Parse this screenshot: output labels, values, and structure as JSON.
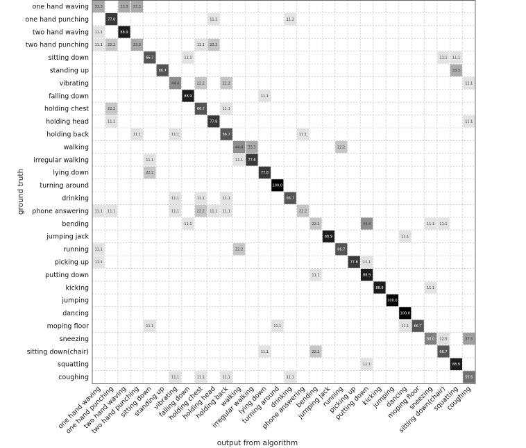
{
  "chart_data": {
    "type": "heatmap",
    "xlabel": "output from algorithm",
    "ylabel": "ground truth",
    "color_scale": {
      "min": 0,
      "max": 100,
      "low_color": "#ffffff",
      "high_color": "#000000"
    },
    "grid": true,
    "labels": [
      "one hand waving",
      "one hand punching",
      "two hand waving",
      "two hand punching",
      "sitting down",
      "standing up",
      "vibrating",
      "falling down",
      "holding chest",
      "holding head",
      "holding back",
      "walking",
      "irregular walking",
      "lying down",
      "turning around",
      "drinking",
      "phone answering",
      "bending",
      "jumping jack",
      "running",
      "picking up",
      "putting down",
      "kicking",
      "jumping",
      "dancing",
      "moping floor",
      "sneezing",
      "sitting down(chair)",
      "squatting",
      "coughing"
    ],
    "cells": [
      {
        "row": 0,
        "col": 0,
        "value": 33.3,
        "label": "33.3"
      },
      {
        "row": 0,
        "col": 2,
        "value": 33.3,
        "label": "33.3"
      },
      {
        "row": 0,
        "col": 3,
        "value": 33.3,
        "label": "33.3"
      },
      {
        "row": 1,
        "col": 1,
        "value": 77.8,
        "label": "77.8"
      },
      {
        "row": 1,
        "col": 9,
        "value": 11.1,
        "label": "11.1"
      },
      {
        "row": 1,
        "col": 15,
        "value": 11.1,
        "label": "11.1"
      },
      {
        "row": 2,
        "col": 0,
        "value": 11.1,
        "label": "11.1"
      },
      {
        "row": 2,
        "col": 2,
        "value": 88.9,
        "label": "88.9"
      },
      {
        "row": 3,
        "col": 0,
        "value": 11.1,
        "label": "11.1"
      },
      {
        "row": 3,
        "col": 1,
        "value": 22.2,
        "label": "22.2"
      },
      {
        "row": 3,
        "col": 3,
        "value": 33.3,
        "label": "33.3"
      },
      {
        "row": 3,
        "col": 8,
        "value": 11.1,
        "label": "11.1"
      },
      {
        "row": 3,
        "col": 9,
        "value": 22.2,
        "label": "22.2"
      },
      {
        "row": 4,
        "col": 4,
        "value": 66.7,
        "label": "66.7"
      },
      {
        "row": 4,
        "col": 7,
        "value": 11.1,
        "label": "11.1"
      },
      {
        "row": 4,
        "col": 27,
        "value": 11.1,
        "label": "11.1"
      },
      {
        "row": 4,
        "col": 28,
        "value": 11.1,
        "label": "11.1"
      },
      {
        "row": 5,
        "col": 5,
        "value": 66.7,
        "label": "66.7"
      },
      {
        "row": 5,
        "col": 28,
        "value": 33.3,
        "label": "33.3"
      },
      {
        "row": 6,
        "col": 6,
        "value": 44.4,
        "label": "44.4"
      },
      {
        "row": 6,
        "col": 8,
        "value": 22.2,
        "label": "22.2"
      },
      {
        "row": 6,
        "col": 10,
        "value": 22.2,
        "label": "22.2"
      },
      {
        "row": 6,
        "col": 29,
        "value": 11.1,
        "label": "11.1"
      },
      {
        "row": 7,
        "col": 7,
        "value": 88.9,
        "label": "88.9"
      },
      {
        "row": 7,
        "col": 13,
        "value": 11.1,
        "label": "11.1"
      },
      {
        "row": 8,
        "col": 1,
        "value": 22.2,
        "label": "22.2"
      },
      {
        "row": 8,
        "col": 8,
        "value": 66.7,
        "label": "66.7"
      },
      {
        "row": 8,
        "col": 10,
        "value": 11.1,
        "label": "11.1"
      },
      {
        "row": 9,
        "col": 1,
        "value": 11.1,
        "label": "11.1"
      },
      {
        "row": 9,
        "col": 9,
        "value": 77.8,
        "label": "77.8"
      },
      {
        "row": 9,
        "col": 29,
        "value": 11.1,
        "label": "11.1"
      },
      {
        "row": 10,
        "col": 3,
        "value": 11.1,
        "label": "11.1"
      },
      {
        "row": 10,
        "col": 6,
        "value": 11.1,
        "label": "11.1"
      },
      {
        "row": 10,
        "col": 10,
        "value": 66.7,
        "label": "66.7"
      },
      {
        "row": 10,
        "col": 16,
        "value": 11.1,
        "label": "11.1"
      },
      {
        "row": 11,
        "col": 11,
        "value": 44.4,
        "label": "44.4"
      },
      {
        "row": 11,
        "col": 12,
        "value": 33.3,
        "label": "33.3"
      },
      {
        "row": 11,
        "col": 19,
        "value": 22.2,
        "label": "22.2"
      },
      {
        "row": 12,
        "col": 4,
        "value": 11.1,
        "label": "11.1"
      },
      {
        "row": 12,
        "col": 11,
        "value": 11.1,
        "label": "11.1"
      },
      {
        "row": 12,
        "col": 12,
        "value": 77.8,
        "label": "77.8"
      },
      {
        "row": 13,
        "col": 4,
        "value": 22.2,
        "label": "22.2"
      },
      {
        "row": 13,
        "col": 13,
        "value": 77.8,
        "label": "77.8"
      },
      {
        "row": 14,
        "col": 14,
        "value": 100.0,
        "label": "100.0"
      },
      {
        "row": 15,
        "col": 6,
        "value": 11.1,
        "label": "11.1"
      },
      {
        "row": 15,
        "col": 8,
        "value": 11.1,
        "label": "11.1"
      },
      {
        "row": 15,
        "col": 10,
        "value": 11.1,
        "label": "11.1"
      },
      {
        "row": 15,
        "col": 15,
        "value": 66.7,
        "label": "66.7"
      },
      {
        "row": 16,
        "col": 0,
        "value": 11.1,
        "label": "11.1"
      },
      {
        "row": 16,
        "col": 1,
        "value": 11.1,
        "label": "11.1"
      },
      {
        "row": 16,
        "col": 6,
        "value": 11.1,
        "label": "11.1"
      },
      {
        "row": 16,
        "col": 8,
        "value": 22.2,
        "label": "22.2"
      },
      {
        "row": 16,
        "col": 9,
        "value": 11.1,
        "label": "11.1"
      },
      {
        "row": 16,
        "col": 10,
        "value": 11.1,
        "label": "11.1"
      },
      {
        "row": 16,
        "col": 16,
        "value": 22.2,
        "label": "22.2"
      },
      {
        "row": 17,
        "col": 7,
        "value": 11.1,
        "label": "11.1"
      },
      {
        "row": 17,
        "col": 17,
        "value": 22.2,
        "label": "22.2"
      },
      {
        "row": 17,
        "col": 21,
        "value": 44.4,
        "label": "44.4"
      },
      {
        "row": 17,
        "col": 26,
        "value": 11.1,
        "label": "11.1"
      },
      {
        "row": 17,
        "col": 27,
        "value": 11.1,
        "label": "11.1"
      },
      {
        "row": 18,
        "col": 18,
        "value": 88.9,
        "label": "88.9"
      },
      {
        "row": 18,
        "col": 24,
        "value": 11.1,
        "label": "11.1"
      },
      {
        "row": 19,
        "col": 0,
        "value": 11.1,
        "label": "11.1"
      },
      {
        "row": 19,
        "col": 11,
        "value": 22.2,
        "label": "22.2"
      },
      {
        "row": 19,
        "col": 19,
        "value": 66.7,
        "label": "66.7"
      },
      {
        "row": 20,
        "col": 0,
        "value": 11.1,
        "label": "11.1"
      },
      {
        "row": 20,
        "col": 20,
        "value": 77.8,
        "label": "77.8"
      },
      {
        "row": 20,
        "col": 21,
        "value": 11.1,
        "label": "11.1"
      },
      {
        "row": 21,
        "col": 17,
        "value": 11.1,
        "label": "11.1"
      },
      {
        "row": 21,
        "col": 21,
        "value": 88.9,
        "label": "88.9"
      },
      {
        "row": 22,
        "col": 22,
        "value": 88.9,
        "label": "88.9"
      },
      {
        "row": 22,
        "col": 26,
        "value": 11.1,
        "label": "11.1"
      },
      {
        "row": 23,
        "col": 23,
        "value": 100.0,
        "label": "100.0"
      },
      {
        "row": 24,
        "col": 24,
        "value": 100.0,
        "label": "100.0"
      },
      {
        "row": 25,
        "col": 4,
        "value": 11.1,
        "label": "11.1"
      },
      {
        "row": 25,
        "col": 14,
        "value": 11.1,
        "label": "11.1"
      },
      {
        "row": 25,
        "col": 24,
        "value": 11.1,
        "label": "11.1"
      },
      {
        "row": 25,
        "col": 25,
        "value": 66.7,
        "label": "66.7"
      },
      {
        "row": 26,
        "col": 26,
        "value": 50.0,
        "label": "50.0"
      },
      {
        "row": 26,
        "col": 27,
        "value": 12.5,
        "label": "12.5"
      },
      {
        "row": 26,
        "col": 29,
        "value": 37.5,
        "label": "37.5"
      },
      {
        "row": 27,
        "col": 13,
        "value": 11.1,
        "label": "11.1"
      },
      {
        "row": 27,
        "col": 17,
        "value": 22.2,
        "label": "22.2"
      },
      {
        "row": 27,
        "col": 27,
        "value": 66.7,
        "label": "66.7"
      },
      {
        "row": 28,
        "col": 21,
        "value": 11.1,
        "label": "11.1"
      },
      {
        "row": 28,
        "col": 28,
        "value": 88.9,
        "label": "88.9"
      },
      {
        "row": 29,
        "col": 6,
        "value": 11.1,
        "label": "11.1"
      },
      {
        "row": 29,
        "col": 8,
        "value": 11.1,
        "label": "11.1"
      },
      {
        "row": 29,
        "col": 10,
        "value": 11.1,
        "label": "11.1"
      },
      {
        "row": 29,
        "col": 15,
        "value": 11.1,
        "label": "11.1"
      },
      {
        "row": 29,
        "col": 29,
        "value": 55.6,
        "label": "55.6"
      }
    ]
  }
}
